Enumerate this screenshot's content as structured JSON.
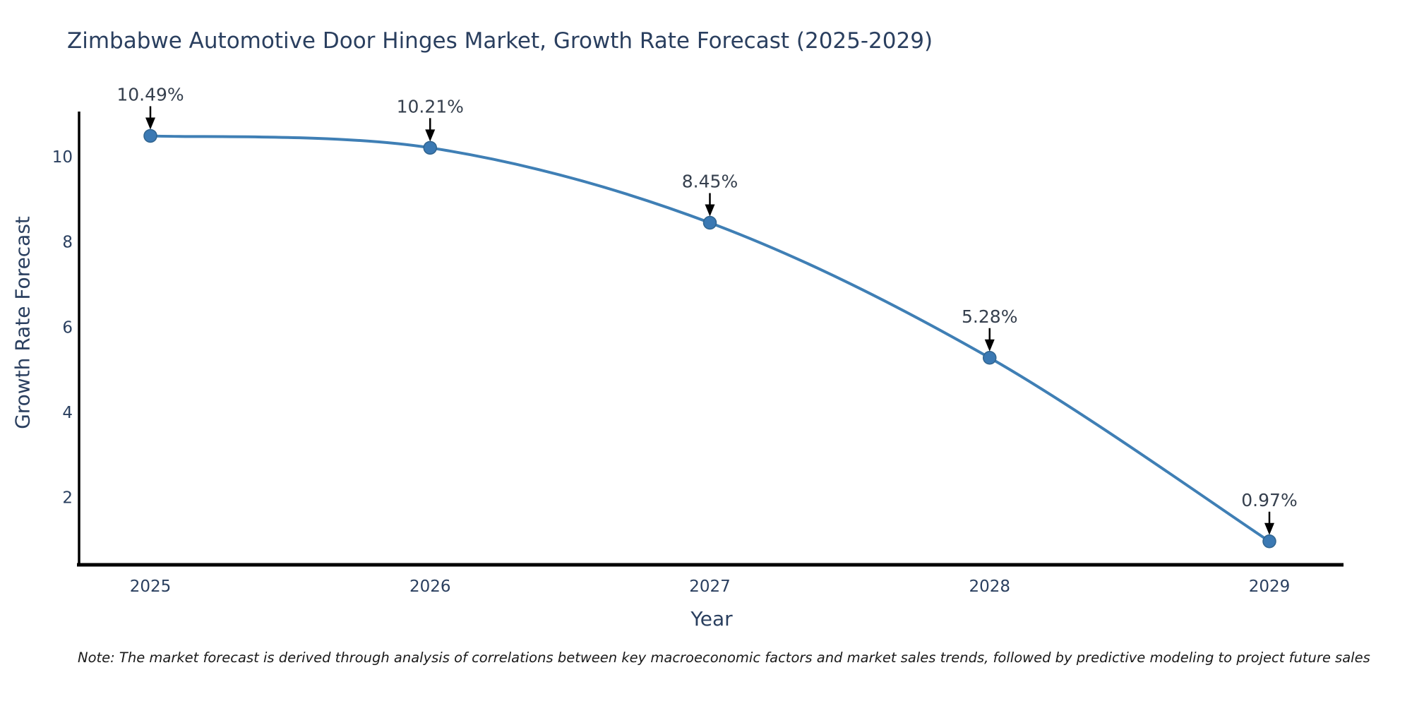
{
  "title": "Zimbabwe Automotive Door Hinges Market, Growth Rate Forecast (2025-2029)",
  "note": "Note: The market forecast is derived through analysis of correlations between key macroeconomic factors and market sales trends, followed by predictive modeling to project future sales",
  "chart_data": {
    "type": "line",
    "title": "Zimbabwe Automotive Door Hinges Market, Growth Rate Forecast (2025-2029)",
    "xlabel": "Year",
    "ylabel": "Growth Rate Forecast",
    "x": [
      2025,
      2026,
      2027,
      2028,
      2029
    ],
    "y": [
      10.49,
      10.21,
      8.45,
      5.28,
      0.97
    ],
    "point_labels": [
      "10.49%",
      "10.21%",
      "8.45%",
      "5.28%",
      "0.97%"
    ],
    "line_shape": "spline",
    "markers": true,
    "annotations_arrow": "down-arrow",
    "yticks": [
      2,
      4,
      6,
      8,
      10
    ],
    "xticks": [
      "2025",
      "2026",
      "2027",
      "2028",
      "2029"
    ],
    "ylim": [
      0.4,
      11.05
    ],
    "grid": false,
    "legend": "none"
  },
  "colors": {
    "line": "#3f7fb5",
    "marker_fill": "#3b79b3",
    "marker_edge": "#30648f",
    "axis": "#000000",
    "arrow": "#000000",
    "title_text": "#2a3f5f",
    "tick_text": "#2a3f5f",
    "annotation_text": "#36404e",
    "background": "#ffffff"
  }
}
